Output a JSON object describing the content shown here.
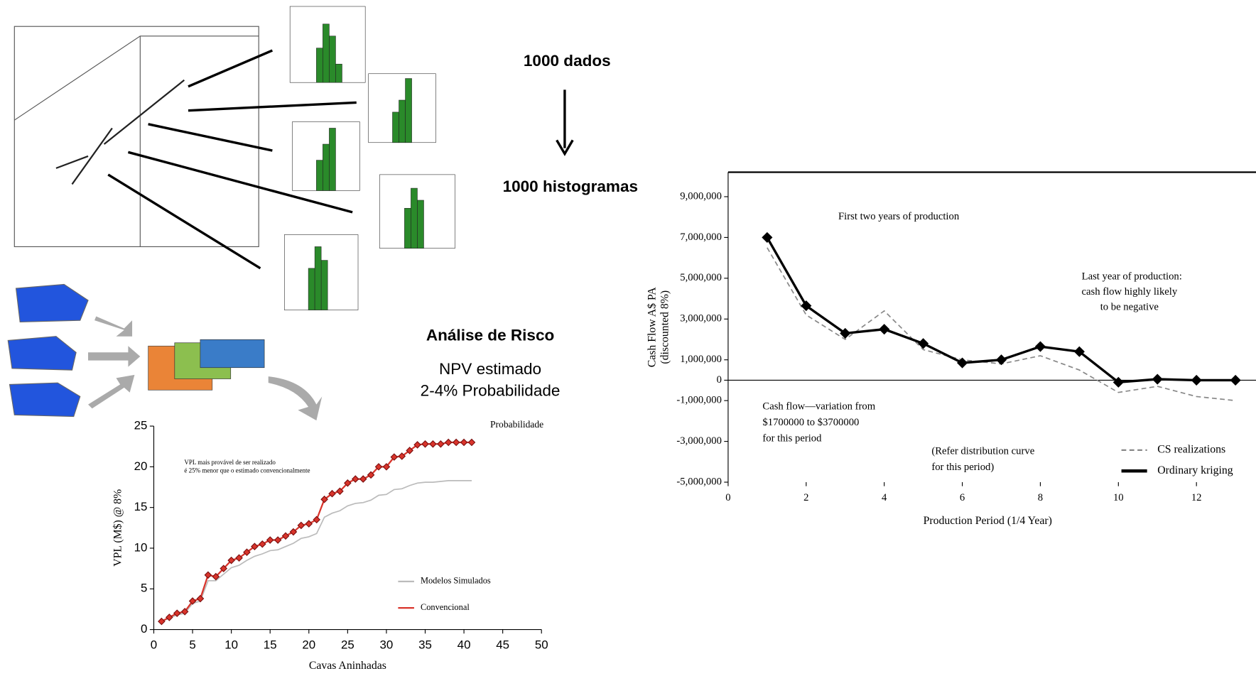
{
  "slide": {
    "label_data": "1000 dados",
    "label_hist": "1000 histogramas",
    "risk_title": "Análise de Risco",
    "risk_lines": [
      "NPV estimado",
      "2-4% Probabilidade"
    ]
  },
  "chart_data": [
    {
      "type": "line",
      "xlabel": "Cavas Aninhadas",
      "ylabel": "VPL (M$) @ 8%",
      "x": [
        1,
        2,
        3,
        4,
        5,
        6,
        7,
        8,
        9,
        10,
        11,
        12,
        13,
        14,
        15,
        16,
        17,
        18,
        19,
        20,
        21,
        22,
        23,
        24,
        25,
        26,
        27,
        28,
        29,
        30,
        31,
        32,
        33,
        34,
        35,
        36,
        37,
        38,
        39,
        40,
        41
      ],
      "series": [
        {
          "name": "Modelos Simulados",
          "color": "#bbbbbb",
          "values": [
            1,
            1.4,
            1.8,
            2,
            3.2,
            3.5,
            6,
            6,
            6.8,
            7.6,
            7.9,
            8.5,
            9,
            9.3,
            9.7,
            9.8,
            10.2,
            10.6,
            11.2,
            11.4,
            11.8,
            13.8,
            14.3,
            14.6,
            15.2,
            15.5,
            15.6,
            15.9,
            16.5,
            16.6,
            17.2,
            17.3,
            17.7,
            18,
            18.1,
            18.1,
            18.2,
            18.3,
            18.3,
            18.3,
            18.3
          ]
        },
        {
          "name": "Convencional",
          "color": "#d9342b",
          "values": [
            1,
            1.5,
            2,
            2.2,
            3.5,
            3.8,
            6.7,
            6.5,
            7.5,
            8.5,
            8.8,
            9.5,
            10.2,
            10.5,
            11,
            11,
            11.5,
            12,
            12.8,
            13,
            13.5,
            16,
            16.7,
            17,
            18,
            18.5,
            18.5,
            19,
            20,
            20,
            21.2,
            21.3,
            22,
            22.7,
            22.8,
            22.8,
            22.8,
            23,
            23,
            23,
            23
          ]
        }
      ],
      "xlim": [
        0,
        50
      ],
      "ylim": [
        0,
        25
      ],
      "xticks": [
        0,
        5,
        10,
        15,
        20,
        25,
        30,
        35,
        40,
        45,
        50
      ],
      "yticks": [
        0,
        5,
        10,
        15,
        20,
        25
      ],
      "annotations": [
        "Probabilidade",
        "VPL mais provável de ser realizado",
        "é 25% menor que o estimado convencionalmente"
      ]
    },
    {
      "type": "line",
      "xlabel": "Production Period (1/4 Year)",
      "ylabel": [
        "Cash Flow A$ PA",
        "(discounted 8%)"
      ],
      "x": [
        1,
        2,
        3,
        4,
        5,
        6,
        7,
        8,
        9,
        10,
        11,
        12,
        13
      ],
      "series": [
        {
          "name": "CS realizations",
          "color": "#888888",
          "dash": true,
          "values": [
            6500000,
            3200000,
            2000000,
            3400000,
            1500000,
            1000000,
            800000,
            1200000,
            500000,
            -600000,
            -300000,
            -800000,
            -1000000
          ]
        },
        {
          "name": "Ordinary kriging",
          "color": "#000000",
          "values": [
            7000000,
            3650000,
            2300000,
            2500000,
            1800000,
            850000,
            1000000,
            1650000,
            1400000,
            -100000,
            50000,
            0,
            0
          ]
        }
      ],
      "xlim": [
        0,
        13.3
      ],
      "ylim": [
        -5000000,
        10200000
      ],
      "xticks": [
        0,
        2,
        4,
        6,
        8,
        10,
        12
      ],
      "yticks": [
        {
          "value": 9000000,
          "label": "9,000,000"
        },
        {
          "value": 7000000,
          "label": "7,000,000"
        },
        {
          "value": 5000000,
          "label": "5,000,000"
        },
        {
          "value": 3000000,
          "label": "3,000,000"
        },
        {
          "value": 1000000,
          "label": "1,000,000"
        },
        0,
        {
          "value": -1000000,
          "label": "-1,000,000"
        },
        {
          "value": -3000000,
          "label": "-3,000,000"
        },
        {
          "value": -5000000,
          "label": "-5,000,000"
        }
      ],
      "annotations": [
        "First two years of production",
        "Last year of production:",
        "cash flow highly likely",
        "to be negative",
        "Cash flow—variation from",
        "$1700000 to $3700000",
        "for this period",
        "(Refer distribution curve",
        "for this period)"
      ]
    }
  ]
}
